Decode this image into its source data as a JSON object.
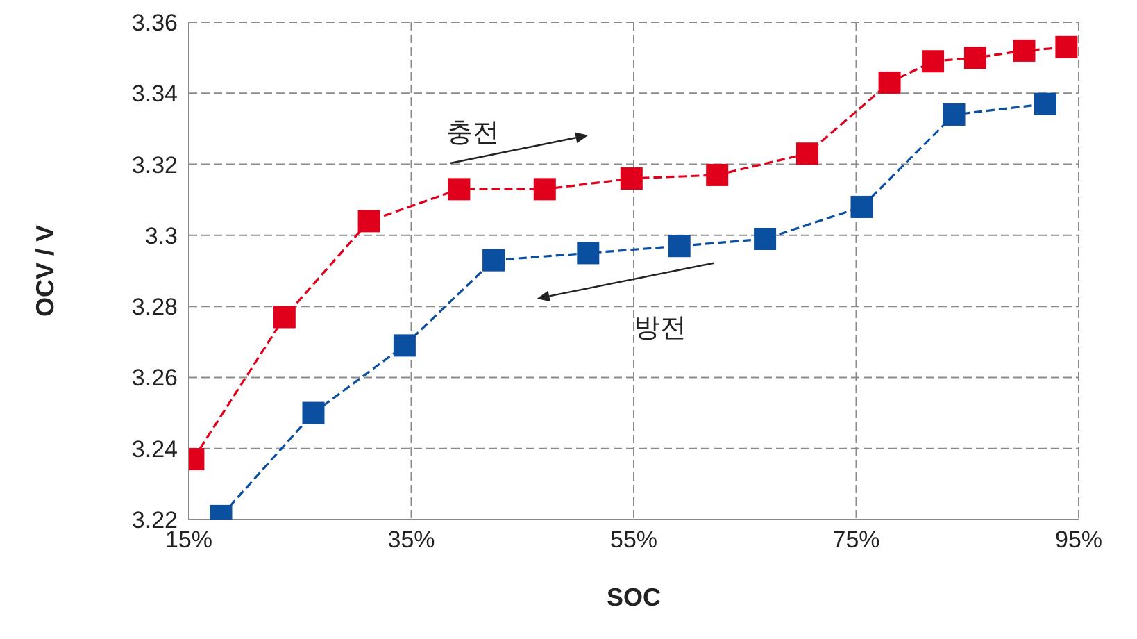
{
  "chart_data": {
    "type": "line",
    "xlabel": "SOC",
    "ylabel": "OCV / V",
    "xlim": [
      15,
      95
    ],
    "xticks": [
      {
        "value": 15,
        "label": "15%"
      },
      {
        "value": 35,
        "label": "35%"
      },
      {
        "value": 55,
        "label": "55%"
      },
      {
        "value": 75,
        "label": "75%"
      },
      {
        "value": 95,
        "label": "95%"
      }
    ],
    "ylim": [
      3.22,
      3.36
    ],
    "yticks": [
      3.22,
      3.24,
      3.26,
      3.28,
      3.3,
      3.32,
      3.34,
      3.36
    ],
    "grid": true,
    "legend": false,
    "marker": "square",
    "line_style": "dashed",
    "series": [
      {
        "name": "충전",
        "color": "#e0001b",
        "x": [
          15.4,
          23.6,
          31.2,
          39.3,
          47.0,
          54.8,
          62.5,
          70.6,
          78.0,
          81.9,
          85.7,
          90.1,
          93.9
        ],
        "values": [
          3.237,
          3.277,
          3.304,
          3.313,
          3.313,
          3.316,
          3.317,
          3.323,
          3.343,
          3.349,
          3.35,
          3.352,
          3.353
        ]
      },
      {
        "name": "방전",
        "color": "#0a4fa0",
        "x": [
          17.9,
          26.2,
          34.4,
          42.4,
          50.9,
          59.1,
          66.8,
          75.5,
          83.8,
          92.0
        ],
        "values": [
          3.221,
          3.25,
          3.269,
          3.293,
          3.295,
          3.297,
          3.299,
          3.308,
          3.334,
          3.337
        ]
      }
    ]
  }
}
